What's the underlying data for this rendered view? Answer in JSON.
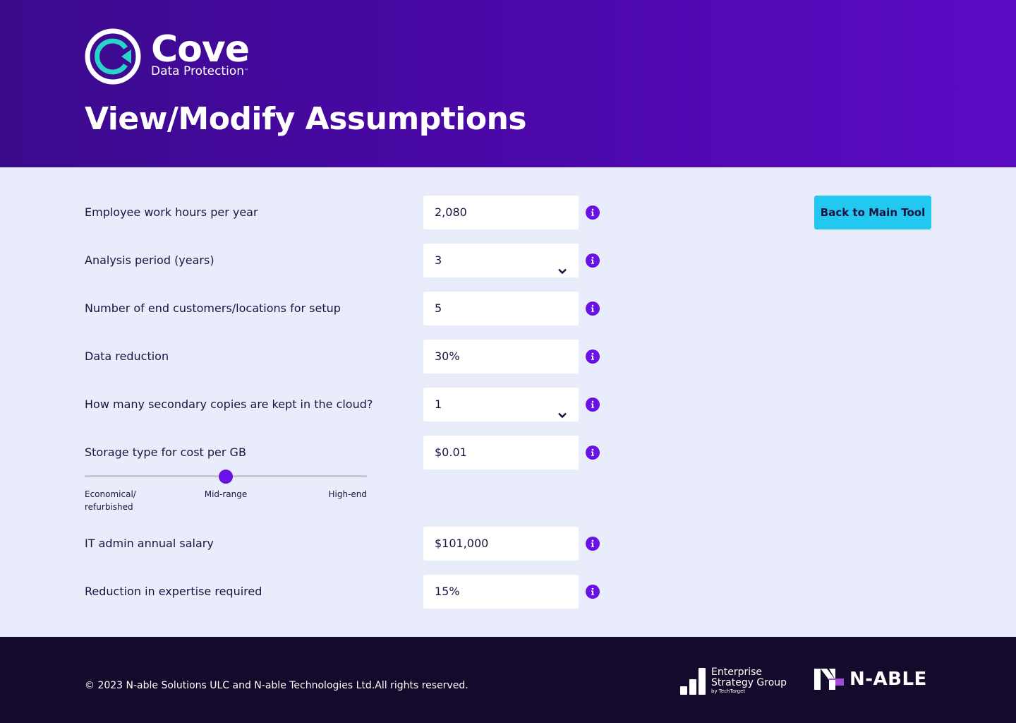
{
  "header": {
    "brand_name": "Cove",
    "brand_sub": "Data Protection",
    "brand_tm": "™",
    "page_title": "View/Modify Assumptions"
  },
  "actions": {
    "back_label": "Back to Main Tool"
  },
  "fields": [
    {
      "label": "Employee work hours per year",
      "value": "2,080",
      "type": "input"
    },
    {
      "label": "Analysis period (years)",
      "value": "3",
      "type": "select"
    },
    {
      "label": "Number of end customers/locations for setup",
      "value": "5",
      "type": "input"
    },
    {
      "label": "Data reduction",
      "value": "30%",
      "type": "input"
    },
    {
      "label": "How many secondary copies are kept in the cloud?",
      "value": "1",
      "type": "select"
    },
    {
      "label": "Storage type for cost per GB",
      "value": "$0.01",
      "type": "input"
    },
    {
      "label": "IT admin annual salary",
      "value": "$101,000",
      "type": "input"
    },
    {
      "label": "Reduction in expertise required",
      "value": "15%",
      "type": "input"
    }
  ],
  "storage_slider": {
    "level": 0.5,
    "label_low": "Economical/ refurbished",
    "label_mid": "Mid-range",
    "label_high": "High-end"
  },
  "footer": {
    "copyright": "© 2023 N-able Solutions ULC and N-able Technologies Ltd.All rights reserved.",
    "esg_line1": "Enterprise",
    "esg_line2": "Strategy Group",
    "esg_line3": "by TechTarget",
    "nable_name": "N-ABLE"
  },
  "colors": {
    "accent": "#6a11e6",
    "button": "#22c8ef",
    "header_start": "#3a0a8c",
    "header_end": "#5a0bc4",
    "footer": "#140a2b",
    "background": "#e9edfb"
  }
}
